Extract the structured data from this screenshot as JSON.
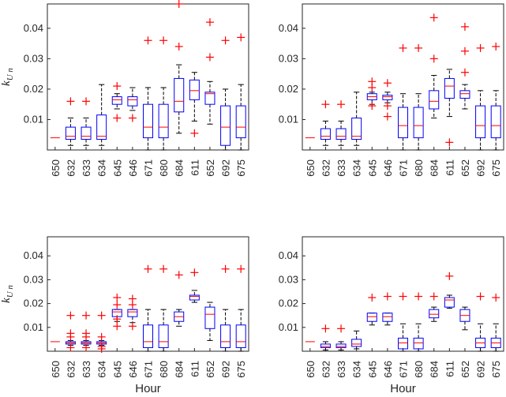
{
  "chart_data": [
    {
      "type": "boxplot",
      "xlabel": "",
      "ylabel": "k",
      "ylabel_subscript": "U n",
      "ylim": [
        0,
        0.048
      ],
      "yticks": [
        0.01,
        0.02,
        0.03,
        0.04
      ],
      "ytick_labels": [
        "0.01",
        "0.02",
        "0.03",
        "0.04"
      ],
      "categories": [
        "650",
        "632",
        "633",
        "634",
        "645",
        "646",
        "671",
        "680",
        "684",
        "611",
        "652",
        "692",
        "675"
      ],
      "boxes": [
        {
          "q1": 0.004,
          "median": 0.004,
          "q3": 0.004,
          "whislo": 0.004,
          "whishi": 0.004,
          "fliers": []
        },
        {
          "q1": 0.0035,
          "median": 0.0045,
          "q3": 0.0075,
          "whislo": 0.0015,
          "whishi": 0.0105,
          "fliers": [
            0.016
          ]
        },
        {
          "q1": 0.0035,
          "median": 0.0045,
          "q3": 0.0075,
          "whislo": 0.0015,
          "whishi": 0.0105,
          "fliers": [
            0.016
          ]
        },
        {
          "q1": 0.0035,
          "median": 0.0045,
          "q3": 0.0115,
          "whislo": 0.0015,
          "whishi": 0.0215,
          "fliers": []
        },
        {
          "q1": 0.015,
          "median": 0.0165,
          "q3": 0.0175,
          "whislo": 0.0135,
          "whishi": 0.0185,
          "fliers": [
            0.021,
            0.0105
          ]
        },
        {
          "q1": 0.0145,
          "median": 0.0165,
          "q3": 0.0175,
          "whislo": 0.013,
          "whishi": 0.0205,
          "fliers": [
            0.0105
          ]
        },
        {
          "q1": 0.004,
          "median": 0.0075,
          "q3": 0.015,
          "whislo": 0.0,
          "whishi": 0.0205,
          "fliers": [
            0.036
          ]
        },
        {
          "q1": 0.004,
          "median": 0.0075,
          "q3": 0.015,
          "whislo": 0.0,
          "whishi": 0.0205,
          "fliers": [
            0.036
          ]
        },
        {
          "q1": 0.0125,
          "median": 0.016,
          "q3": 0.0235,
          "whislo": 0.0055,
          "whishi": 0.028,
          "fliers": [
            0.048,
            0.034
          ]
        },
        {
          "q1": 0.0165,
          "median": 0.0195,
          "q3": 0.023,
          "whislo": 0.0095,
          "whishi": 0.0255,
          "fliers": [
            0.0055
          ]
        },
        {
          "q1": 0.015,
          "median": 0.0185,
          "q3": 0.019,
          "whislo": 0.0085,
          "whishi": 0.0225,
          "fliers": [
            0.042,
            0.0305
          ]
        },
        {
          "q1": 0.0015,
          "median": 0.0075,
          "q3": 0.0145,
          "whislo": 0.0,
          "whishi": 0.02,
          "fliers": [
            0.036
          ]
        },
        {
          "q1": 0.004,
          "median": 0.0075,
          "q3": 0.0145,
          "whislo": 0.0,
          "whishi": 0.0215,
          "fliers": [
            0.037
          ]
        }
      ]
    },
    {
      "type": "boxplot",
      "xlabel": "",
      "ylabel": "",
      "ylim": [
        0,
        0.048
      ],
      "yticks": [
        0.01,
        0.02,
        0.03,
        0.04
      ],
      "ytick_labels": [
        "0.01",
        "0.02",
        "0.03",
        "0.04"
      ],
      "categories": [
        "650",
        "632",
        "633",
        "634",
        "645",
        "646",
        "671",
        "680",
        "684",
        "611",
        "652",
        "692",
        "675"
      ],
      "boxes": [
        {
          "q1": 0.004,
          "median": 0.004,
          "q3": 0.004,
          "whislo": 0.004,
          "whishi": 0.004,
          "fliers": []
        },
        {
          "q1": 0.0035,
          "median": 0.0045,
          "q3": 0.007,
          "whislo": 0.0015,
          "whishi": 0.0095,
          "fliers": [
            0.015
          ]
        },
        {
          "q1": 0.0035,
          "median": 0.0045,
          "q3": 0.007,
          "whislo": 0.0015,
          "whishi": 0.0095,
          "fliers": [
            0.015
          ]
        },
        {
          "q1": 0.0035,
          "median": 0.0045,
          "q3": 0.0105,
          "whislo": 0.0015,
          "whishi": 0.019,
          "fliers": []
        },
        {
          "q1": 0.0165,
          "median": 0.0175,
          "q3": 0.0185,
          "whislo": 0.015,
          "whishi": 0.019,
          "fliers": [
            0.0225,
            0.0205,
            0.0145
          ]
        },
        {
          "q1": 0.0165,
          "median": 0.0175,
          "q3": 0.018,
          "whislo": 0.0155,
          "whishi": 0.019,
          "fliers": [
            0.022,
            0.0145,
            0.011
          ]
        },
        {
          "q1": 0.004,
          "median": 0.008,
          "q3": 0.014,
          "whislo": 0.0,
          "whishi": 0.0185,
          "fliers": [
            0.0335
          ]
        },
        {
          "q1": 0.004,
          "median": 0.008,
          "q3": 0.014,
          "whislo": 0.0,
          "whishi": 0.0185,
          "fliers": [
            0.0335
          ]
        },
        {
          "q1": 0.0135,
          "median": 0.016,
          "q3": 0.0195,
          "whislo": 0.0105,
          "whishi": 0.0245,
          "fliers": [
            0.0435,
            0.03
          ]
        },
        {
          "q1": 0.017,
          "median": 0.021,
          "q3": 0.0235,
          "whislo": 0.011,
          "whishi": 0.0265,
          "fliers": [
            0.0025
          ]
        },
        {
          "q1": 0.017,
          "median": 0.0185,
          "q3": 0.0195,
          "whislo": 0.0135,
          "whishi": 0.0215,
          "fliers": [
            0.0405,
            0.0325,
            0.0255
          ]
        },
        {
          "q1": 0.004,
          "median": 0.008,
          "q3": 0.0145,
          "whislo": 0.0,
          "whishi": 0.0195,
          "fliers": [
            0.0335
          ]
        },
        {
          "q1": 0.004,
          "median": 0.008,
          "q3": 0.0145,
          "whislo": 0.0,
          "whishi": 0.0195,
          "fliers": [
            0.034
          ]
        }
      ]
    },
    {
      "type": "boxplot",
      "xlabel": "Hour",
      "ylabel": "k",
      "ylabel_subscript": "U n",
      "ylim": [
        0,
        0.048
      ],
      "yticks": [
        0.01,
        0.02,
        0.03,
        0.04
      ],
      "ytick_labels": [
        "0.01",
        "0.02",
        "0.03",
        "0.04"
      ],
      "categories": [
        "650",
        "632",
        "633",
        "634",
        "645",
        "646",
        "671",
        "680",
        "684",
        "611",
        "652",
        "692",
        "675"
      ],
      "boxes": [
        {
          "q1": 0.004,
          "median": 0.004,
          "q3": 0.004,
          "whislo": 0.004,
          "whishi": 0.004,
          "fliers": []
        },
        {
          "q1": 0.003,
          "median": 0.0035,
          "q3": 0.004,
          "whislo": 0.0025,
          "whishi": 0.0045,
          "fliers": [
            0.015,
            0.0075,
            0.006,
            0.0015
          ]
        },
        {
          "q1": 0.003,
          "median": 0.0035,
          "q3": 0.004,
          "whislo": 0.0025,
          "whishi": 0.0045,
          "fliers": [
            0.015,
            0.0075,
            0.006,
            0.0015
          ]
        },
        {
          "q1": 0.003,
          "median": 0.0035,
          "q3": 0.004,
          "whislo": 0.0025,
          "whishi": 0.0045,
          "fliers": [
            0.015,
            0.006,
            0.002,
            0.001
          ]
        },
        {
          "q1": 0.0145,
          "median": 0.0165,
          "q3": 0.0175,
          "whislo": 0.0125,
          "whishi": 0.0175,
          "fliers": [
            0.0225,
            0.0195,
            0.0135,
            0.0105
          ]
        },
        {
          "q1": 0.0145,
          "median": 0.0165,
          "q3": 0.0175,
          "whislo": 0.012,
          "whishi": 0.0175,
          "fliers": [
            0.022,
            0.0195,
            0.0105
          ]
        },
        {
          "q1": 0.0015,
          "median": 0.004,
          "q3": 0.011,
          "whislo": 0.0,
          "whishi": 0.0175,
          "fliers": [
            0.0345
          ]
        },
        {
          "q1": 0.0015,
          "median": 0.004,
          "q3": 0.011,
          "whislo": 0.0,
          "whishi": 0.0175,
          "fliers": [
            0.0345
          ]
        },
        {
          "q1": 0.0125,
          "median": 0.0145,
          "q3": 0.0165,
          "whislo": 0.0105,
          "whishi": 0.0175,
          "fliers": [
            0.032
          ]
        },
        {
          "q1": 0.0215,
          "median": 0.023,
          "q3": 0.0235,
          "whislo": 0.0205,
          "whishi": 0.0255,
          "fliers": [
            0.033
          ]
        },
        {
          "q1": 0.0095,
          "median": 0.0155,
          "q3": 0.0185,
          "whislo": 0.0045,
          "whishi": 0.0205,
          "fliers": []
        },
        {
          "q1": 0.0015,
          "median": 0.004,
          "q3": 0.011,
          "whislo": 0.0,
          "whishi": 0.0175,
          "fliers": [
            0.0345
          ]
        },
        {
          "q1": 0.0015,
          "median": 0.004,
          "q3": 0.011,
          "whislo": 0.0,
          "whishi": 0.0175,
          "fliers": [
            0.0345
          ]
        }
      ]
    },
    {
      "type": "boxplot",
      "xlabel": "Hour",
      "ylabel": "",
      "ylim": [
        0,
        0.048
      ],
      "yticks": [
        0.01,
        0.02,
        0.03,
        0.04
      ],
      "ytick_labels": [
        "0.01",
        "0.02",
        "0.03",
        "0.04"
      ],
      "categories": [
        "650",
        "632",
        "633",
        "634",
        "645",
        "646",
        "671",
        "680",
        "684",
        "611",
        "652",
        "692",
        "675"
      ],
      "boxes": [
        {
          "q1": 0.004,
          "median": 0.004,
          "q3": 0.004,
          "whislo": 0.004,
          "whishi": 0.004,
          "fliers": []
        },
        {
          "q1": 0.0015,
          "median": 0.002,
          "q3": 0.003,
          "whislo": 0.0005,
          "whishi": 0.004,
          "fliers": [
            0.0095
          ]
        },
        {
          "q1": 0.0015,
          "median": 0.002,
          "q3": 0.003,
          "whislo": 0.0005,
          "whishi": 0.004,
          "fliers": [
            0.0095
          ]
        },
        {
          "q1": 0.002,
          "median": 0.003,
          "q3": 0.005,
          "whislo": 0.001,
          "whishi": 0.0085,
          "fliers": []
        },
        {
          "q1": 0.0125,
          "median": 0.0145,
          "q3": 0.016,
          "whislo": 0.011,
          "whishi": 0.016,
          "fliers": [
            0.0225
          ]
        },
        {
          "q1": 0.0125,
          "median": 0.0145,
          "q3": 0.016,
          "whislo": 0.011,
          "whishi": 0.016,
          "fliers": [
            0.023
          ]
        },
        {
          "q1": 0.001,
          "median": 0.0035,
          "q3": 0.0055,
          "whislo": 0.0,
          "whishi": 0.0115,
          "fliers": [
            0.023
          ]
        },
        {
          "q1": 0.001,
          "median": 0.0035,
          "q3": 0.0055,
          "whislo": 0.0,
          "whishi": 0.0115,
          "fliers": [
            0.023
          ]
        },
        {
          "q1": 0.014,
          "median": 0.0155,
          "q3": 0.0175,
          "whislo": 0.0125,
          "whishi": 0.0185,
          "fliers": [
            0.023
          ]
        },
        {
          "q1": 0.0185,
          "median": 0.0215,
          "q3": 0.0225,
          "whislo": 0.018,
          "whishi": 0.0235,
          "fliers": [
            0.0315
          ]
        },
        {
          "q1": 0.0125,
          "median": 0.015,
          "q3": 0.0175,
          "whislo": 0.009,
          "whishi": 0.0185,
          "fliers": []
        },
        {
          "q1": 0.0015,
          "median": 0.0035,
          "q3": 0.0055,
          "whislo": 0.0,
          "whishi": 0.0115,
          "fliers": [
            0.023
          ]
        },
        {
          "q1": 0.0015,
          "median": 0.0035,
          "q3": 0.0055,
          "whislo": 0.0,
          "whishi": 0.0115,
          "fliers": [
            0.0225
          ]
        }
      ]
    }
  ]
}
